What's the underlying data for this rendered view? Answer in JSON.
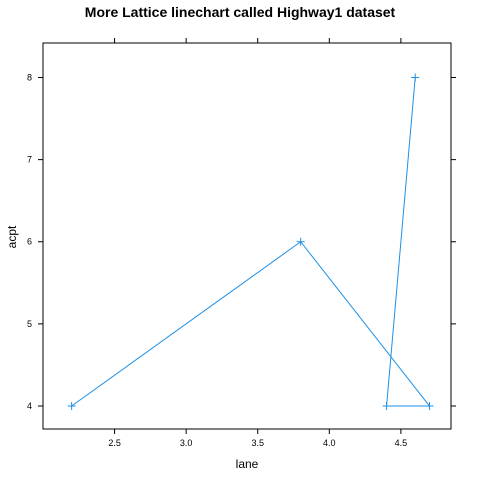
{
  "chart_data": {
    "type": "line",
    "title": "More Lattice linechart called Highway1 dataset",
    "xlabel": "lane",
    "ylabel": "acpt",
    "x_ticks": [
      "2.5",
      "3.0",
      "3.5",
      "4.0",
      "4.5"
    ],
    "y_ticks": [
      "4",
      "5",
      "6",
      "7",
      "8"
    ],
    "xlim": [
      2.0,
      4.85
    ],
    "ylim": [
      3.72,
      8.42
    ],
    "grid": false,
    "marker": "plus",
    "series": [
      {
        "points": [
          {
            "x": 2.2,
            "y": 4
          },
          {
            "x": 3.8,
            "y": 6
          },
          {
            "x": 4.7,
            "y": 4
          },
          {
            "x": 4.4,
            "y": 4
          },
          {
            "x": 4.6,
            "y": 8
          }
        ]
      }
    ],
    "colors": {
      "series": "#1e90e6",
      "frame": "#000000"
    }
  }
}
